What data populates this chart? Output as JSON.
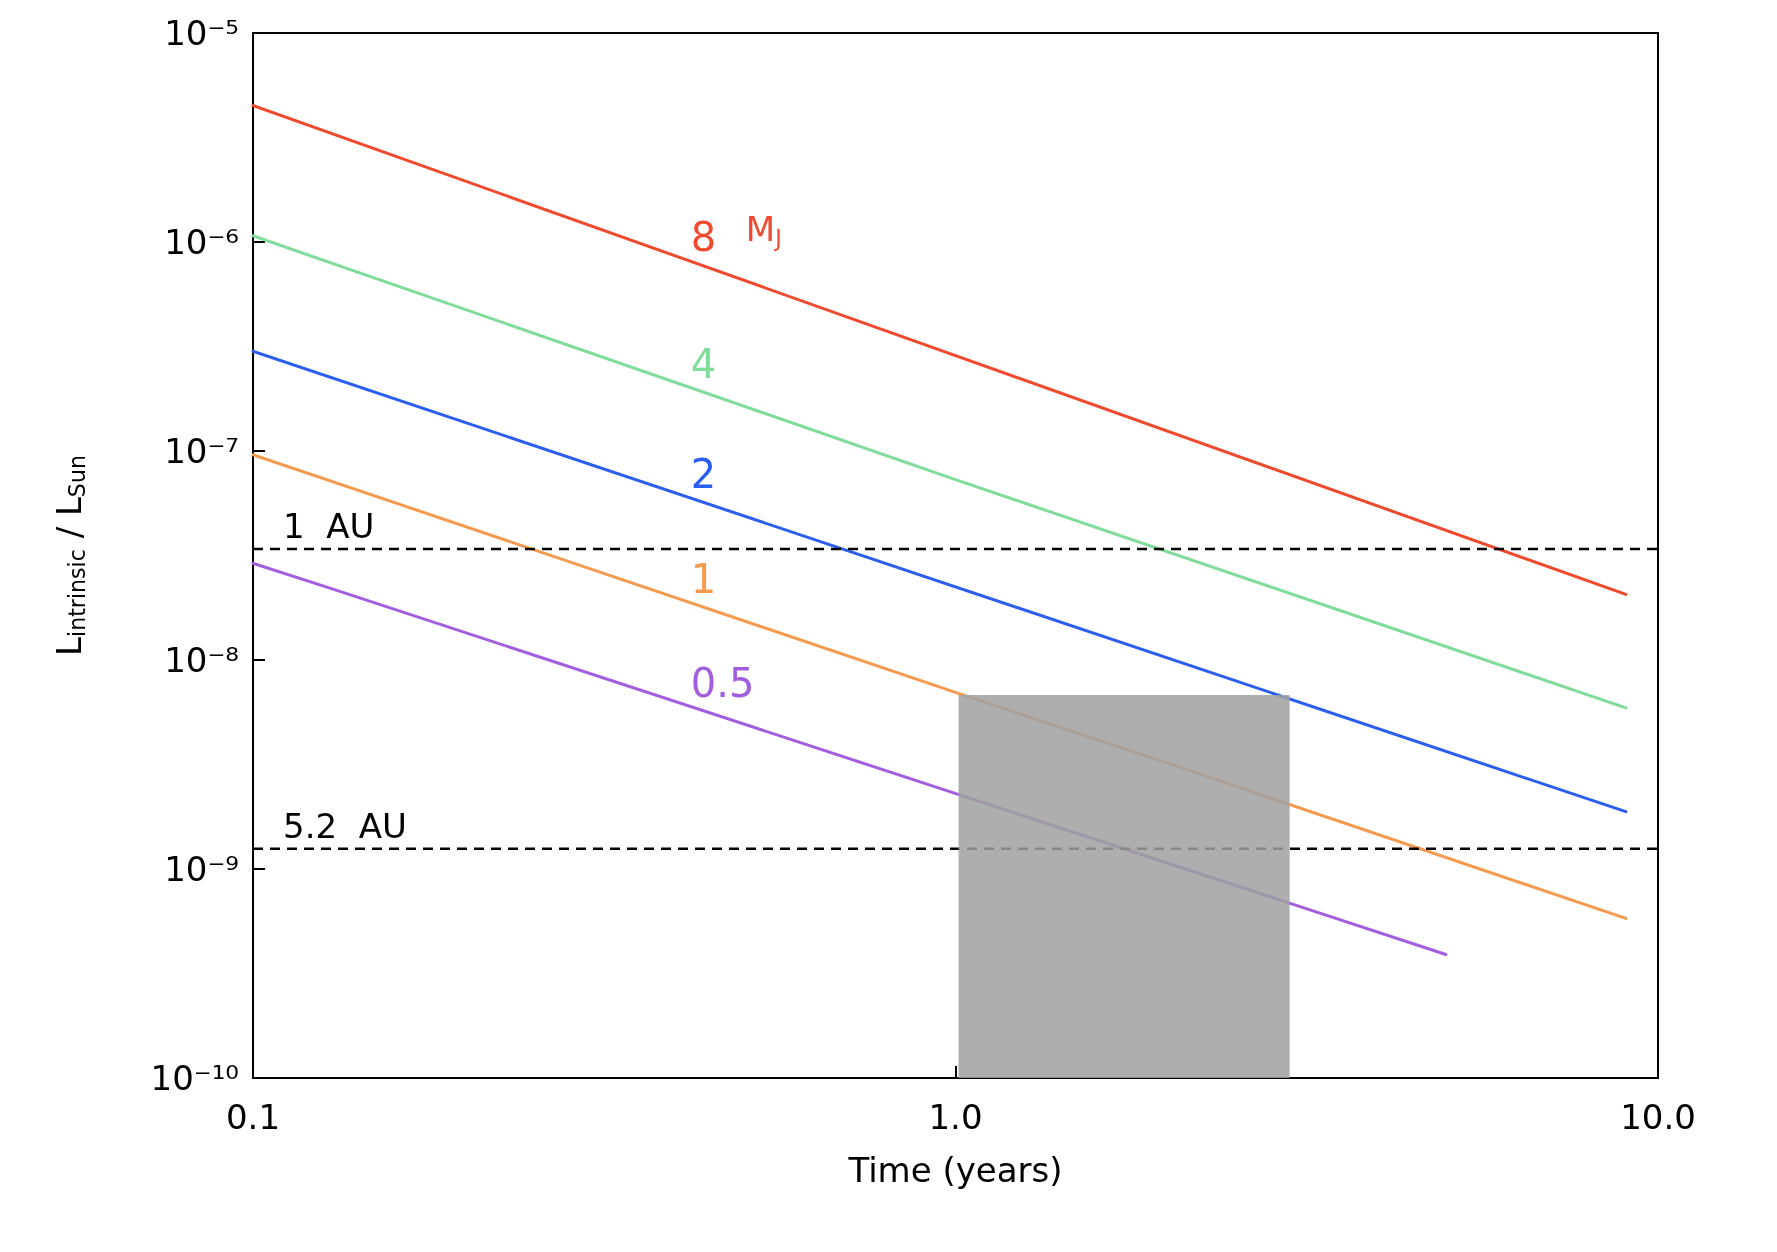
{
  "chart_data": {
    "type": "line",
    "xlabel": "Time (years)",
    "ylabel": "L$_{intrinsic}$ / L$_{Sun}$",
    "log": "xy",
    "marker": "none",
    "line_style": "solid",
    "xlim": [
      0.1,
      10
    ],
    "xticks": [
      0.1,
      {
        "value": 1,
        "label": "1.0"
      },
      {
        "value": 10,
        "label": "10.0"
      }
    ],
    "ylim": [
      1e-10,
      1e-05
    ],
    "yticks": [
      {
        "value": 1e-10,
        "label": "10⁻¹⁰"
      },
      {
        "value": 1e-09,
        "label": "10⁻⁹"
      },
      {
        "value": 1e-08,
        "label": "10⁻⁸"
      },
      {
        "value": 1e-07,
        "label": "10⁻⁷"
      },
      {
        "value": 1e-06,
        "label": "10⁻⁶"
      },
      {
        "value": 1e-05,
        "label": "10⁻⁵"
      }
    ],
    "series": [
      {
        "type": "area",
        "color": "#a0a0a0",
        "x": [
          1.01,
          2.99
        ],
        "values": [
          6.8e-09,
          6.8e-09
        ]
      },
      {
        "name": "8",
        "color": "#f04a2e",
        "x": [
          0.1,
          9
        ],
        "values": [
          4.5e-06,
          2.06e-08
        ]
      },
      {
        "name": "4",
        "color": "#7fdc9a",
        "x": [
          0.1,
          1,
          9
        ],
        "values": [
          1.07e-06,
          7.3e-08,
          5.9e-09
        ]
      },
      {
        "name": "2",
        "color": "#2a5ef0",
        "x": [
          0.1,
          9
        ],
        "values": [
          3e-07,
          1.88e-09
        ]
      },
      {
        "name": "1",
        "color": "#f59a4e",
        "x": [
          0.1,
          1,
          2.05,
          9
        ],
        "values": [
          9.6e-08,
          7e-09,
          3.13e-09,
          5.8e-10
        ]
      },
      {
        "name": "0.5",
        "color": "#a35ee0",
        "x": [
          0.1,
          0.129,
          4.99
        ],
        "values": [
          2.9e-08,
          2.2e-08,
          3.9e-10
        ]
      }
    ],
    "ref_lines": [
      {
        "axis": "y",
        "value": 3.4e-08,
        "label": "1  AU",
        "color": "#000000",
        "line_style": "dashed"
      },
      {
        "axis": "y",
        "value": 1.25e-09,
        "label": "5.2  AU",
        "color": "#000000",
        "line_style": "dashed"
      }
    ],
    "annotations": [
      "M$_{J}$"
    ]
  }
}
